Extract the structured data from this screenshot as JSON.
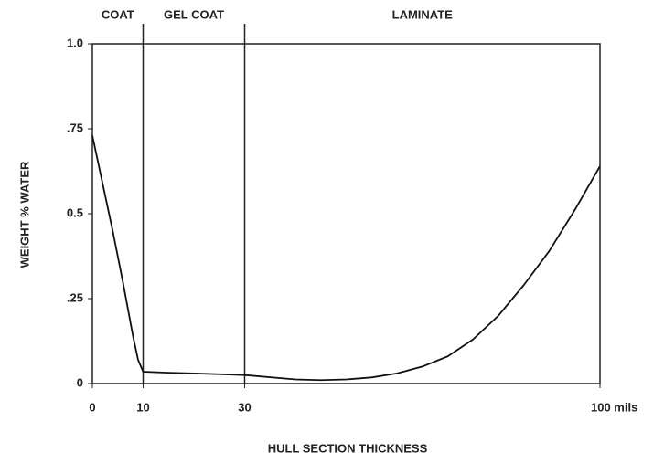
{
  "chart_data": {
    "type": "line",
    "x_label": "HULL SECTION THICKNESS",
    "y_label": "WEIGHT % WATER",
    "regions": [
      "COAT",
      "GEL COAT",
      "LAMINATE"
    ],
    "dividers": [
      10,
      30
    ],
    "x": [
      0,
      2,
      4,
      6,
      8,
      9,
      10,
      15,
      20,
      30,
      40,
      45,
      50,
      55,
      60,
      65,
      70,
      75,
      80,
      85,
      90,
      95,
      100
    ],
    "series": [
      {
        "color": "#111111",
        "values": [
          0.73,
          0.59,
          0.45,
          0.3,
          0.14,
          0.07,
          0.035,
          0.032,
          0.03,
          0.025,
          0.012,
          0.01,
          0.012,
          0.018,
          0.03,
          0.05,
          0.08,
          0.13,
          0.2,
          0.29,
          0.39,
          0.51,
          0.64
        ]
      }
    ],
    "xlim": [
      0,
      100
    ],
    "xticks": [
      0,
      10,
      30,
      {
        "value": 100,
        "label": "100 mils"
      }
    ],
    "ylim": [
      0,
      1
    ],
    "yticks": [
      0,
      {
        "value": 0.25,
        "label": ".25"
      },
      0.5,
      {
        "value": 0.75,
        "label": ".75"
      },
      {
        "value": 1,
        "label": "1.0"
      }
    ]
  }
}
